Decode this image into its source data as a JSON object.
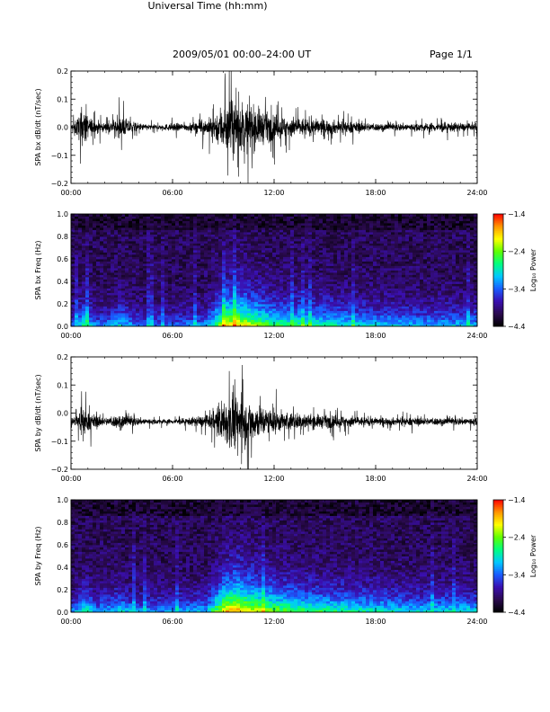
{
  "header": {
    "title": "2009/05/01   00:00–24:00 UT",
    "page": "Page 1/1"
  },
  "x_axis_title": "Universal Time (hh:mm)",
  "x_ticks": [
    "00:00",
    "06:00",
    "12:00",
    "18:00",
    "24:00"
  ],
  "colors": {
    "trace": "#000000",
    "background": "#ffffff",
    "colormap": [
      "#000000",
      "#2a0a4e",
      "#3a0fb0",
      "#1a5cff",
      "#00c8ff",
      "#00ff7f",
      "#5fff00",
      "#ffff00",
      "#ff9600",
      "#ff0000"
    ]
  },
  "chart_data": [
    {
      "type": "line",
      "title": "",
      "ylabel": "SPA bx dB/dt (nT/sec)",
      "xlabel": "",
      "xlim": [
        0,
        24
      ],
      "ylim": [
        -0.2,
        0.2
      ],
      "y_ticks": [
        "0.2",
        "0.1",
        "0.0",
        "−0.1",
        "−0.2"
      ],
      "envelope": [
        {
          "x": 0.0,
          "amp": 0.02
        },
        {
          "x": 0.5,
          "amp": 0.1
        },
        {
          "x": 0.8,
          "amp": 0.16
        },
        {
          "x": 1.0,
          "amp": 0.08
        },
        {
          "x": 2.0,
          "amp": 0.03
        },
        {
          "x": 3.0,
          "amp": 0.08
        },
        {
          "x": 4.0,
          "amp": 0.03
        },
        {
          "x": 5.0,
          "amp": 0.02
        },
        {
          "x": 6.0,
          "amp": 0.03
        },
        {
          "x": 7.0,
          "amp": 0.03
        },
        {
          "x": 8.0,
          "amp": 0.06
        },
        {
          "x": 8.5,
          "amp": 0.1
        },
        {
          "x": 9.0,
          "amp": 0.2
        },
        {
          "x": 9.5,
          "amp": 0.22
        },
        {
          "x": 10.0,
          "amp": 0.2
        },
        {
          "x": 10.5,
          "amp": 0.18
        },
        {
          "x": 11.0,
          "amp": 0.16
        },
        {
          "x": 11.5,
          "amp": 0.12
        },
        {
          "x": 12.0,
          "amp": 0.1
        },
        {
          "x": 13.0,
          "amp": 0.08
        },
        {
          "x": 14.0,
          "amp": 0.07
        },
        {
          "x": 15.0,
          "amp": 0.06
        },
        {
          "x": 16.0,
          "amp": 0.05
        },
        {
          "x": 17.0,
          "amp": 0.04
        },
        {
          "x": 18.0,
          "amp": 0.03
        },
        {
          "x": 20.0,
          "amp": 0.03
        },
        {
          "x": 22.0,
          "amp": 0.04
        },
        {
          "x": 23.5,
          "amp": 0.03
        },
        {
          "x": 24.0,
          "amp": 0.03
        }
      ],
      "offset": 0.0,
      "grid": false
    },
    {
      "type": "heatmap",
      "title": "",
      "ylabel": "SPA bx Freq (Hz)",
      "xlabel": "",
      "xlim": [
        0,
        24
      ],
      "ylim": [
        0.0,
        1.0
      ],
      "y_ticks": [
        "1.0",
        "0.8",
        "0.6",
        "0.4",
        "0.2",
        "0.0"
      ],
      "colorbar": {
        "label": "Log₁₀ Power",
        "ticks": [
          "−1.4",
          "−2.4",
          "−3.4",
          "−4.4"
        ],
        "range": [
          -4.4,
          -1.4
        ]
      },
      "power_profile": [
        {
          "x": 0.0,
          "p": 0.25
        },
        {
          "x": 0.8,
          "p": 0.55
        },
        {
          "x": 1.5,
          "p": 0.3
        },
        {
          "x": 3.0,
          "p": 0.45
        },
        {
          "x": 4.0,
          "p": 0.3
        },
        {
          "x": 6.0,
          "p": 0.3
        },
        {
          "x": 8.0,
          "p": 0.35
        },
        {
          "x": 9.0,
          "p": 0.8
        },
        {
          "x": 9.7,
          "p": 0.9
        },
        {
          "x": 10.5,
          "p": 0.78
        },
        {
          "x": 12.0,
          "p": 0.6
        },
        {
          "x": 14.0,
          "p": 0.55
        },
        {
          "x": 16.0,
          "p": 0.5
        },
        {
          "x": 18.0,
          "p": 0.45
        },
        {
          "x": 20.0,
          "p": 0.4
        },
        {
          "x": 24.0,
          "p": 0.4
        }
      ]
    },
    {
      "type": "line",
      "title": "",
      "ylabel": "SPA by dB/dt (nT/sec)",
      "xlabel": "",
      "xlim": [
        0,
        24
      ],
      "ylim": [
        -0.2,
        0.2
      ],
      "y_ticks": [
        "0.2",
        "0.1",
        "0.0",
        "−0.1",
        "−0.2"
      ],
      "envelope": [
        {
          "x": 0.0,
          "amp": 0.02
        },
        {
          "x": 0.5,
          "amp": 0.07
        },
        {
          "x": 0.8,
          "amp": 0.12
        },
        {
          "x": 1.0,
          "amp": 0.07
        },
        {
          "x": 2.0,
          "amp": 0.03
        },
        {
          "x": 3.0,
          "amp": 0.06
        },
        {
          "x": 4.0,
          "amp": 0.03
        },
        {
          "x": 5.0,
          "amp": 0.02
        },
        {
          "x": 6.0,
          "amp": 0.02
        },
        {
          "x": 7.0,
          "amp": 0.03
        },
        {
          "x": 8.0,
          "amp": 0.05
        },
        {
          "x": 8.5,
          "amp": 0.08
        },
        {
          "x": 9.0,
          "amp": 0.18
        },
        {
          "x": 9.5,
          "amp": 0.22
        },
        {
          "x": 10.0,
          "amp": 0.2
        },
        {
          "x": 10.5,
          "amp": 0.17
        },
        {
          "x": 11.0,
          "amp": 0.14
        },
        {
          "x": 11.5,
          "amp": 0.11
        },
        {
          "x": 12.0,
          "amp": 0.09
        },
        {
          "x": 13.0,
          "amp": 0.07
        },
        {
          "x": 14.0,
          "amp": 0.06
        },
        {
          "x": 15.0,
          "amp": 0.05
        },
        {
          "x": 16.0,
          "amp": 0.05
        },
        {
          "x": 17.0,
          "amp": 0.04
        },
        {
          "x": 18.0,
          "amp": 0.03
        },
        {
          "x": 20.0,
          "amp": 0.03
        },
        {
          "x": 22.0,
          "amp": 0.03
        },
        {
          "x": 23.5,
          "amp": 0.03
        },
        {
          "x": 24.0,
          "amp": 0.03
        }
      ],
      "offset": -0.03,
      "grid": false
    },
    {
      "type": "heatmap",
      "title": "",
      "ylabel": "SPA by Freq (Hz)",
      "xlabel": "",
      "xlim": [
        0,
        24
      ],
      "ylim": [
        0.0,
        1.0
      ],
      "y_ticks": [
        "1.0",
        "0.8",
        "0.6",
        "0.4",
        "0.2",
        "0.0"
      ],
      "colorbar": {
        "label": "Log₁₀ Power",
        "ticks": [
          "−1.4",
          "−2.4",
          "−3.4",
          "−4.4"
        ],
        "range": [
          -4.4,
          -1.4
        ]
      },
      "power_profile": [
        {
          "x": 0.0,
          "p": 0.3
        },
        {
          "x": 0.8,
          "p": 0.55
        },
        {
          "x": 1.5,
          "p": 0.35
        },
        {
          "x": 3.0,
          "p": 0.45
        },
        {
          "x": 4.0,
          "p": 0.35
        },
        {
          "x": 6.0,
          "p": 0.35
        },
        {
          "x": 8.0,
          "p": 0.4
        },
        {
          "x": 9.0,
          "p": 0.85
        },
        {
          "x": 9.7,
          "p": 0.95
        },
        {
          "x": 10.5,
          "p": 0.85
        },
        {
          "x": 12.0,
          "p": 0.7
        },
        {
          "x": 14.0,
          "p": 0.6
        },
        {
          "x": 16.0,
          "p": 0.55
        },
        {
          "x": 18.0,
          "p": 0.5
        },
        {
          "x": 20.0,
          "p": 0.45
        },
        {
          "x": 24.0,
          "p": 0.45
        }
      ]
    }
  ]
}
